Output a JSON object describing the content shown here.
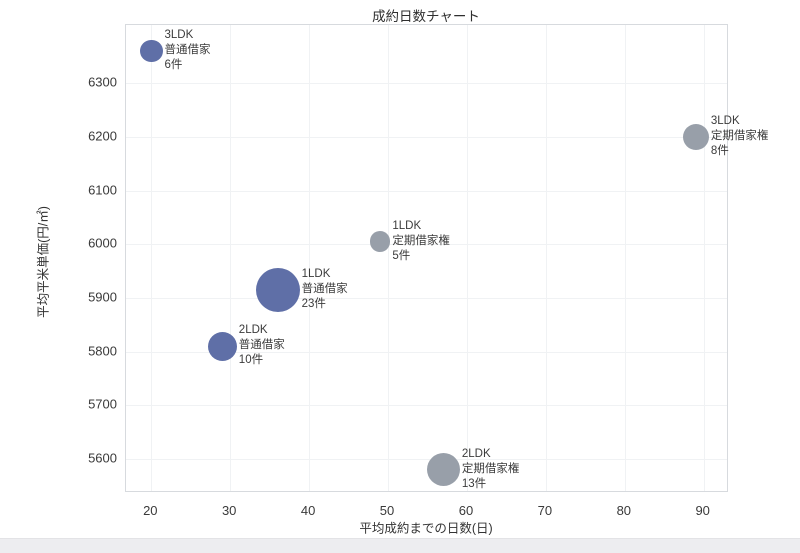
{
  "page": {
    "background": "#ffffff",
    "footer_strip_color": "#ededf0"
  },
  "chart_data": {
    "type": "scatter",
    "subtype": "bubble",
    "title": "成約日数チャート",
    "xlabel": "平均成約までの日数(日)",
    "ylabel": "平均平米単価(円/㎡)",
    "xlim": [
      16.8,
      93.2
    ],
    "ylim": [
      5537,
      6408
    ],
    "x_ticks": [
      20,
      30,
      40,
      50,
      60,
      70,
      80,
      90
    ],
    "y_ticks": [
      5600,
      5700,
      5800,
      5900,
      6000,
      6100,
      6200,
      6300
    ],
    "grid": true,
    "legend": "none",
    "size_encoding": "bubble area proportional to count (件)",
    "series": [
      {
        "name": "普通借家",
        "color": "#5f6fa7",
        "points": [
          {
            "x": 20,
            "y": 6360,
            "count": 6,
            "lines": [
              "3LDK",
              "普通借家",
              "6件"
            ]
          },
          {
            "x": 36,
            "y": 5915,
            "count": 23,
            "lines": [
              "1LDK",
              "普通借家",
              "23件"
            ]
          },
          {
            "x": 29,
            "y": 5810,
            "count": 10,
            "lines": [
              "2LDK",
              "普通借家",
              "10件"
            ]
          }
        ]
      },
      {
        "name": "定期借家権",
        "color": "#989fa9",
        "points": [
          {
            "x": 89,
            "y": 6200,
            "count": 8,
            "lines": [
              "3LDK",
              "定期借家権",
              "8件"
            ]
          },
          {
            "x": 49,
            "y": 6005,
            "count": 5,
            "lines": [
              "1LDK",
              "定期借家権",
              "5件"
            ]
          },
          {
            "x": 57,
            "y": 5580,
            "count": 13,
            "lines": [
              "2LDK",
              "定期借家権",
              "13件"
            ]
          }
        ]
      }
    ]
  }
}
